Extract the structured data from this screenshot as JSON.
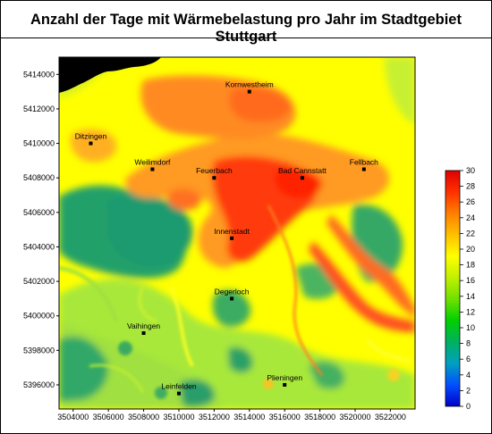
{
  "title": "Anzahl der Tage mit Wärmebelastung pro Jahr im Stadtgebiet Stuttgart",
  "map": {
    "x_ticks": [
      "3504000",
      "3506000",
      "3508000",
      "3510000",
      "3512000",
      "3514000",
      "3516000",
      "3518000",
      "3520000",
      "3522000"
    ],
    "y_ticks": [
      "5414000",
      "5412000",
      "5410000",
      "5408000",
      "5406000",
      "5404000",
      "5402000",
      "5400000",
      "5398000",
      "5396000"
    ],
    "places": [
      {
        "name": "Kornwestheim",
        "x": 3514000,
        "y": 5413000
      },
      {
        "name": "Ditzingen",
        "x": 3505000,
        "y": 5410000
      },
      {
        "name": "Weilimdorf",
        "x": 3508500,
        "y": 5408500
      },
      {
        "name": "Feuerbach",
        "x": 3512000,
        "y": 5408000
      },
      {
        "name": "Bad Cannstatt",
        "x": 3517000,
        "y": 5408000
      },
      {
        "name": "Fellbach",
        "x": 3520500,
        "y": 5408500
      },
      {
        "name": "Innenstadt",
        "x": 3513000,
        "y": 5404500
      },
      {
        "name": "Degerloch",
        "x": 3513000,
        "y": 5401000
      },
      {
        "name": "Vaihingen",
        "x": 3508000,
        "y": 5399000
      },
      {
        "name": "Leinfelden",
        "x": 3510000,
        "y": 5395500
      },
      {
        "name": "Plieningen",
        "x": 3516000,
        "y": 5396000
      }
    ]
  },
  "colorbar": {
    "min": 0,
    "max": 30,
    "ticks": [
      "0",
      "2",
      "4",
      "6",
      "8",
      "10",
      "12",
      "14",
      "16",
      "18",
      "20",
      "22",
      "24",
      "26",
      "28",
      "30"
    ],
    "colors": [
      "#0000c8",
      "#0050ff",
      "#00a0c0",
      "#00b060",
      "#00d000",
      "#70e000",
      "#c0f000",
      "#ffff00",
      "#ffc000",
      "#ff8000",
      "#ff3000",
      "#e00000"
    ]
  }
}
